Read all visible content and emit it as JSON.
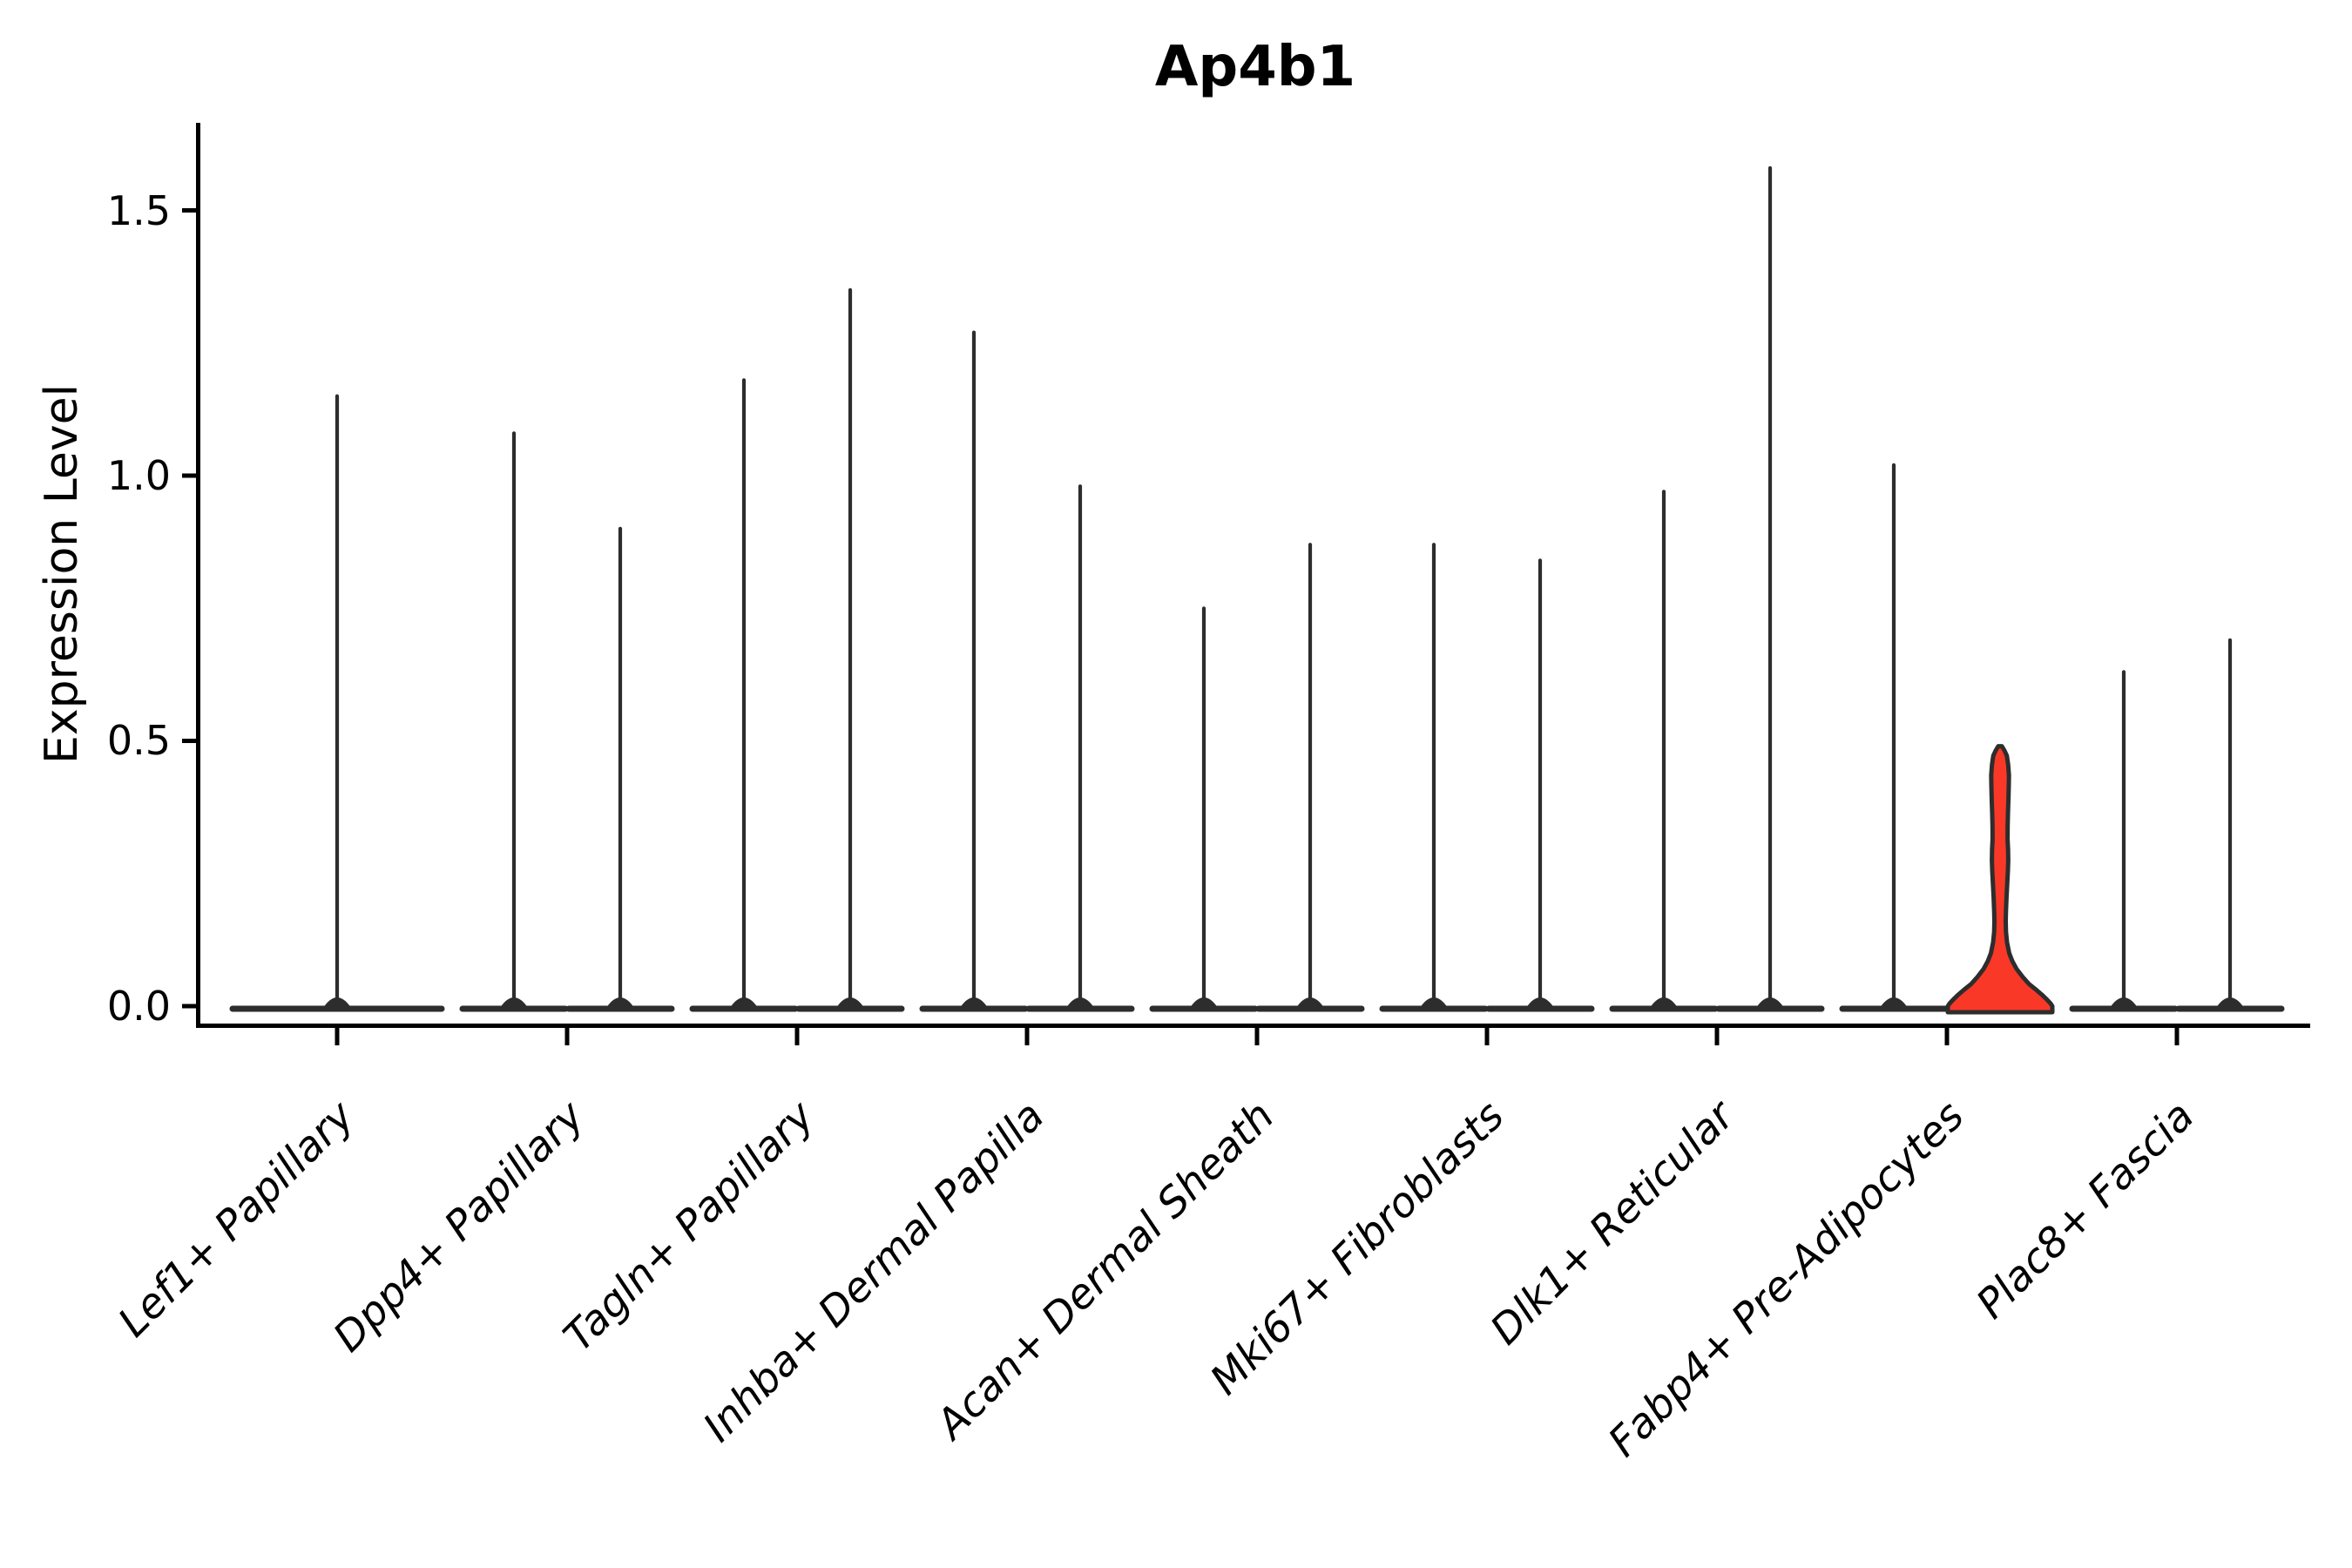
{
  "title": "Ap4b1",
  "y_axis": {
    "label": "Expression Level",
    "tick_labels": [
      "0.0",
      "0.5",
      "1.0",
      "1.5"
    ]
  },
  "x_axis": {
    "tick_count": 9
  },
  "chart_data": {
    "type": "violin",
    "title": "Ap4b1",
    "xlabel": "",
    "ylabel": "Expression Level",
    "ylim": [
      -0.05,
      1.67
    ],
    "yticks": [
      0.0,
      0.5,
      1.0,
      1.5
    ],
    "grid": false,
    "legend": "none",
    "background": "#ffffff",
    "axis_color": "#000000",
    "violin_outline_color": "#2D2D2D",
    "highlight_fill_color": "#FA3828",
    "categories": [
      "Lef1+ Papillary",
      "Dpp4+ Papillary",
      "Tagln+ Papillary",
      "Inhba+ Dermal Papilla",
      "Acan+ Dermal Sheath",
      "Mki67+ Fibroblasts",
      "Dlk1+ Reticular",
      "Fabp4+ Pre-Adipocytes",
      "Plac8+ Fascia"
    ],
    "note": "Each category shows two adjacent thin violins (most cells at 0 expression, thin spike to max); first category shows a single centered violin; Fabp4+ Pre-Adipocytes right violin is highlighted red with visible density body up to ~0.49",
    "violins": [
      {
        "category": "Lef1+ Papillary",
        "parts": [
          {
            "pos": "center",
            "max_expression": 1.15
          }
        ]
      },
      {
        "category": "Dpp4+ Papillary",
        "parts": [
          {
            "pos": "left",
            "max_expression": 1.08
          },
          {
            "pos": "right",
            "max_expression": 0.9
          }
        ]
      },
      {
        "category": "Tagln+ Papillary",
        "parts": [
          {
            "pos": "left",
            "max_expression": 1.18
          },
          {
            "pos": "right",
            "max_expression": 1.35
          }
        ]
      },
      {
        "category": "Inhba+ Dermal Papilla",
        "parts": [
          {
            "pos": "left",
            "max_expression": 1.27
          },
          {
            "pos": "right",
            "max_expression": 0.98
          }
        ]
      },
      {
        "category": "Acan+ Dermal Sheath",
        "parts": [
          {
            "pos": "left",
            "max_expression": 0.75
          },
          {
            "pos": "right",
            "max_expression": 0.87
          }
        ]
      },
      {
        "category": "Mki67+ Fibroblasts",
        "parts": [
          {
            "pos": "left",
            "max_expression": 0.87
          },
          {
            "pos": "right",
            "max_expression": 0.84
          }
        ]
      },
      {
        "category": "Dlk1+ Reticular",
        "parts": [
          {
            "pos": "left",
            "max_expression": 0.97
          },
          {
            "pos": "right",
            "max_expression": 1.58
          }
        ]
      },
      {
        "category": "Fabp4+ Pre-Adipocytes",
        "parts": [
          {
            "pos": "left",
            "max_expression": 1.02
          },
          {
            "pos": "right",
            "max_expression": 0.49,
            "highlighted": true
          }
        ]
      },
      {
        "category": "Plac8+ Fascia",
        "parts": [
          {
            "pos": "left",
            "max_expression": 0.63
          },
          {
            "pos": "right",
            "max_expression": 0.69
          }
        ]
      }
    ],
    "highlight_profile": [
      [
        0.49,
        2.0
      ],
      [
        0.482,
        5.0
      ],
      [
        0.472,
        7.8
      ],
      [
        0.455,
        9.3
      ],
      [
        0.435,
        10.2
      ],
      [
        0.415,
        10.0
      ],
      [
        0.39,
        9.6
      ],
      [
        0.365,
        9.1
      ],
      [
        0.34,
        8.7
      ],
      [
        0.315,
        8.6
      ],
      [
        0.295,
        9.2
      ],
      [
        0.275,
        9.4
      ],
      [
        0.255,
        9.0
      ],
      [
        0.23,
        8.2
      ],
      [
        0.205,
        7.4
      ],
      [
        0.18,
        6.8
      ],
      [
        0.16,
        6.5
      ],
      [
        0.14,
        6.8
      ],
      [
        0.12,
        8.0
      ],
      [
        0.1,
        10.5
      ],
      [
        0.085,
        14.0
      ],
      [
        0.07,
        19.0
      ],
      [
        0.055,
        26.0
      ],
      [
        0.042,
        33.0
      ],
      [
        0.03,
        42.0
      ],
      [
        0.02,
        49.0
      ],
      [
        0.012,
        54.0
      ],
      [
        0.005,
        58.0
      ],
      [
        0.0,
        60.0
      ]
    ]
  }
}
